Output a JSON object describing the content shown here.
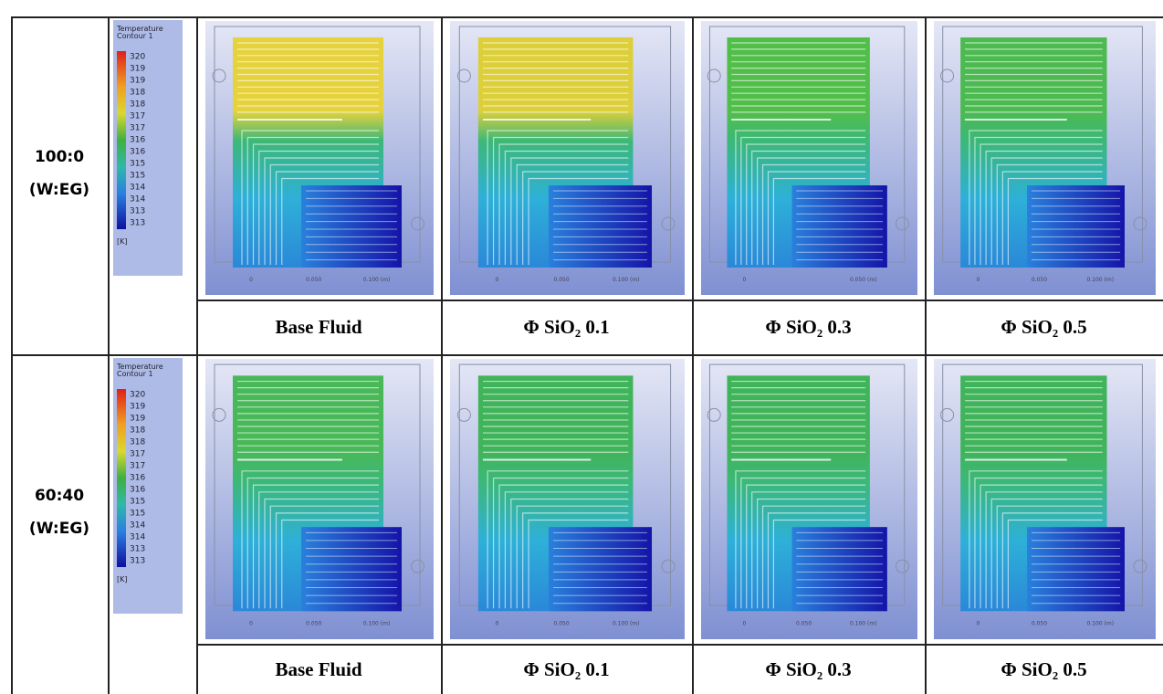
{
  "rows": [
    {
      "label_lines": [
        "100:0",
        "(W:EG)"
      ],
      "legend": {
        "title_lines": [
          "Temperature",
          "Contour 1"
        ],
        "values": [
          "320",
          "319",
          "319",
          "318",
          "318",
          "317",
          "317",
          "316",
          "316",
          "315",
          "315",
          "314",
          "314",
          "313",
          "313"
        ],
        "unit": "[K]"
      },
      "panels": [
        {
          "caption": "Base Fluid",
          "scale": [
            "0",
            "0.050",
            "0.100 (m)"
          ]
        },
        {
          "caption": "Φ SiO₂ 0.1",
          "scale": [
            "0",
            "0.050",
            "0.100 (m)"
          ]
        },
        {
          "caption": "Φ SiO₂ 0.3",
          "scale": [
            "0",
            "0.050 (m)"
          ]
        },
        {
          "caption": "Φ SiO₂ 0.5",
          "scale": [
            "0",
            "0.050",
            "0.100 (m)"
          ]
        }
      ]
    },
    {
      "label_lines": [
        "60:40",
        "(W:EG)"
      ],
      "legend": {
        "title_lines": [
          "Temperature",
          "Contour 1"
        ],
        "values": [
          "320",
          "319",
          "319",
          "318",
          "318",
          "317",
          "317",
          "316",
          "316",
          "315",
          "315",
          "314",
          "314",
          "313",
          "313"
        ],
        "unit": "[K]"
      },
      "panels": [
        {
          "caption": "Base Fluid",
          "scale": [
            "0",
            "0.050",
            "0.100 (m)"
          ]
        },
        {
          "caption": "Φ SiO₂ 0.1",
          "scale": [
            "0",
            "0.050",
            "0.100 (m)"
          ]
        },
        {
          "caption": "Φ SiO₂ 0.3",
          "scale": [
            "0",
            "0.050",
            "0.100 (m)"
          ]
        },
        {
          "caption": "Φ SiO₂ 0.5",
          "scale": [
            "0",
            "0.050",
            "0.100 (m)"
          ]
        }
      ]
    }
  ]
}
